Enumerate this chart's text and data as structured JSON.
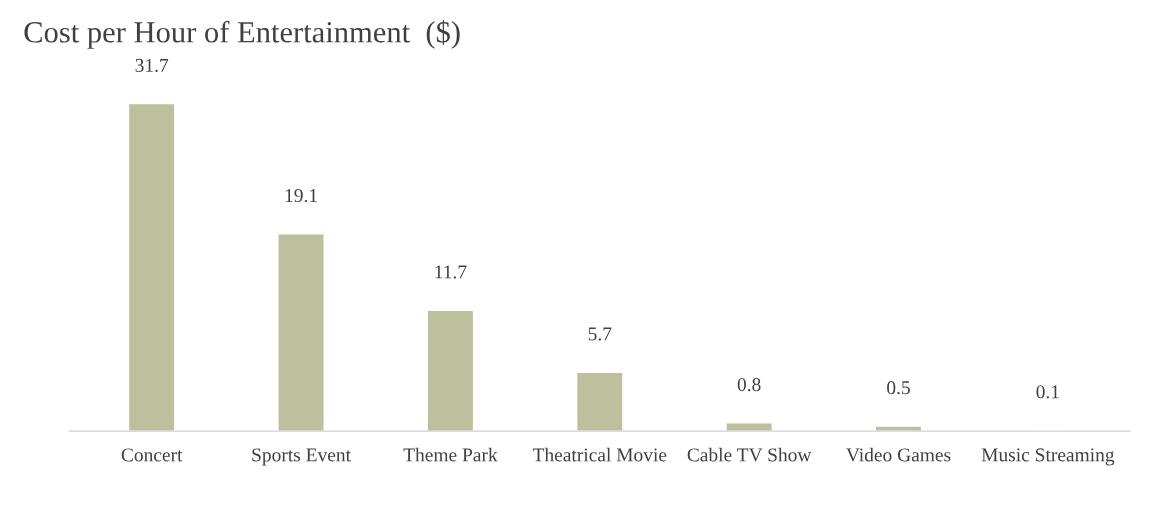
{
  "chart_data": {
    "type": "bar",
    "title": "Cost per Hour of Entertainment  ($)",
    "categories": [
      "Concert",
      "Sports Event",
      "Theme Park",
      "Theatrical Movie",
      "Cable TV Show",
      "Video Games",
      "Music Streaming"
    ],
    "values": [
      31.7,
      19.1,
      11.7,
      5.7,
      0.8,
      0.5,
      0.1
    ],
    "color": "#bdbf9d",
    "data_labels": true,
    "grid": false,
    "legend": false,
    "tick_labels": "x"
  }
}
